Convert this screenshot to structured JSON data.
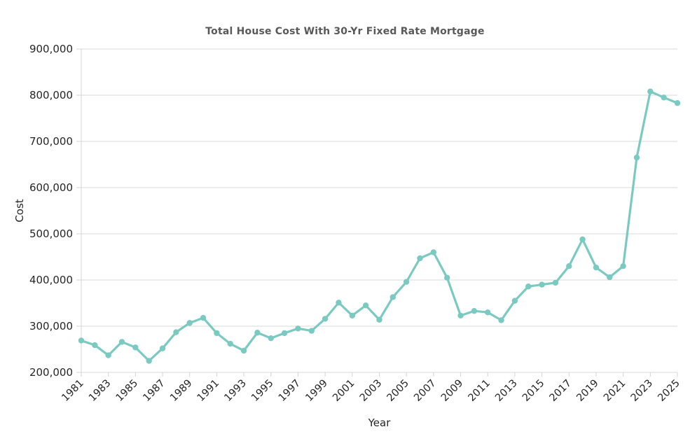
{
  "chart_data": {
    "type": "line",
    "title": "Total House Cost With 30-Yr Fixed Rate Mortgage",
    "xlabel": "Year",
    "ylabel": "Cost",
    "x": [
      1981,
      1982,
      1983,
      1984,
      1985,
      1986,
      1987,
      1988,
      1989,
      1990,
      1991,
      1992,
      1993,
      1994,
      1995,
      1996,
      1997,
      1998,
      1999,
      2000,
      2001,
      2002,
      2003,
      2004,
      2005,
      2006,
      2007,
      2008,
      2009,
      2010,
      2011,
      2012,
      2013,
      2014,
      2015,
      2016,
      2017,
      2018,
      2019,
      2020,
      2021,
      2022,
      2023,
      2024,
      2025
    ],
    "series": [
      {
        "name": "Total house cost",
        "values": [
          269000,
          259000,
          237000,
          266000,
          254000,
          225000,
          252000,
          287000,
          307000,
          318000,
          285000,
          262000,
          247000,
          286000,
          274000,
          285000,
          295000,
          290000,
          316000,
          351000,
          323000,
          345000,
          314000,
          363000,
          396000,
          447000,
          460000,
          405000,
          323000,
          333000,
          330000,
          313000,
          355000,
          386000,
          390000,
          394000,
          430000,
          488000,
          427000,
          406000,
          430000,
          665000,
          808000,
          795000,
          783000
        ]
      }
    ],
    "xlim": [
      1981,
      2025
    ],
    "ylim": [
      200000,
      900000
    ],
    "xtick_interval": 2,
    "ytick_interval": 100000,
    "xtick_rotation_deg": 45,
    "grid": "horizontal",
    "legend_position": "none",
    "marker": "circle"
  },
  "colors": {
    "line": "#7BCAC2",
    "grid": "#d9d9d9",
    "axis_spine": "#d4d4d4",
    "tick_label": "#262626",
    "title": "#595959",
    "background": "#ffffff"
  }
}
